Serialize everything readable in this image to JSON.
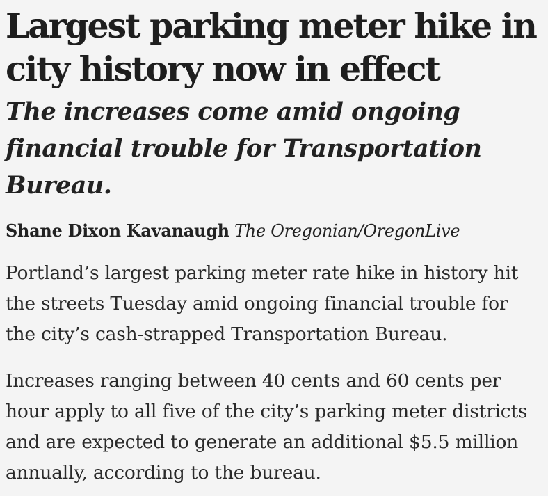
{
  "article": {
    "headline": "Largest parking meter hike in city history now in effect",
    "dek": "The increases come amid ongoing financial trouble for Transportation Bureau.",
    "byline": {
      "author": "Shane Dixon Kavanaugh",
      "outlet": "The Oregonian/OregonLive"
    },
    "paragraphs": [
      "Portland’s largest parking meter rate hike in history hit the streets Tuesday amid ongoing financial trouble for the city’s cash-strapped Transportation Bureau.",
      "Increases ranging between 40 cents and 60 cents per hour apply to all five of the city’s parking meter districts and are expected to generate an additional $5.5 million annually, according to the bureau."
    ]
  }
}
